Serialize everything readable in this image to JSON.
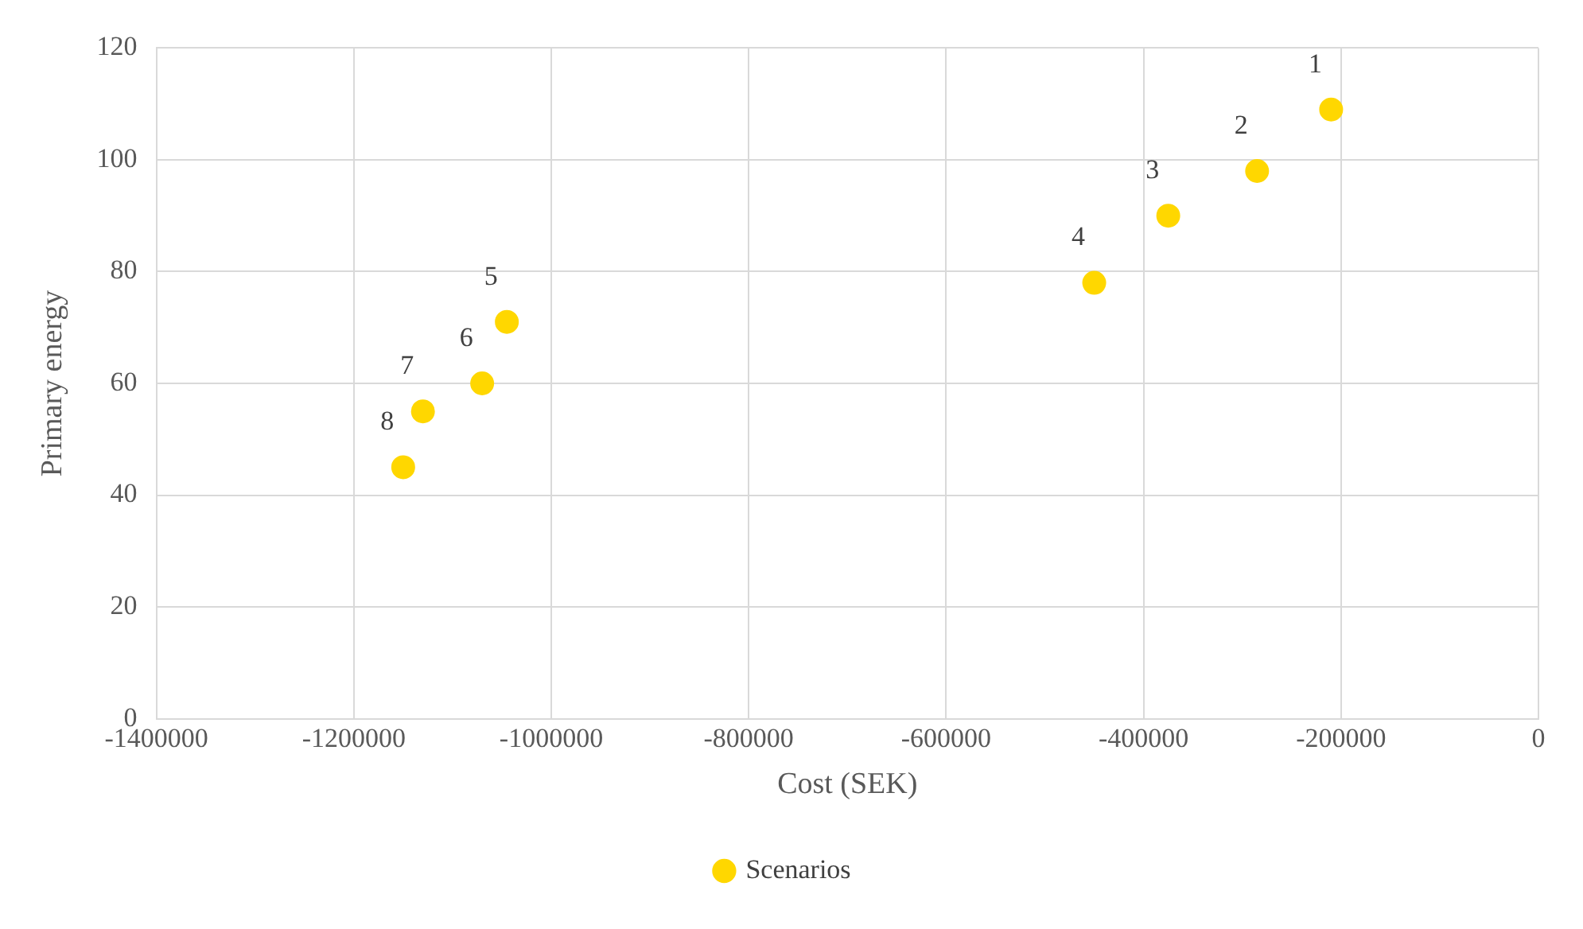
{
  "chart_data": {
    "type": "scatter",
    "xlabel": "Cost (SEK)",
    "ylabel": "Primary energy",
    "x": [
      -210000,
      -285000,
      -375000,
      -450000,
      -1045000,
      -1070000,
      -1130000,
      -1150000
    ],
    "series": [
      {
        "name": "Scenarios",
        "color": "#ffd700",
        "values": [
          109,
          98,
          90,
          78,
          71,
          60,
          55,
          45
        ]
      }
    ],
    "annotations": [
      {
        "text": "1",
        "x": -210000,
        "y": 109
      },
      {
        "text": "2",
        "x": -285000,
        "y": 98
      },
      {
        "text": "3",
        "x": -375000,
        "y": 90
      },
      {
        "text": "4",
        "x": -450000,
        "y": 78
      },
      {
        "text": "5",
        "x": -1045000,
        "y": 71
      },
      {
        "text": "6",
        "x": -1070000,
        "y": 60
      },
      {
        "text": "7",
        "x": -1130000,
        "y": 55
      },
      {
        "text": "8",
        "x": -1150000,
        "y": 45
      }
    ],
    "xlim": [
      -1400000,
      0
    ],
    "xticks": [
      -1400000,
      -1200000,
      -1000000,
      -800000,
      -600000,
      -400000,
      -200000,
      0
    ],
    "ylim": [
      0,
      120
    ],
    "yticks": [
      0,
      20,
      40,
      60,
      80,
      100,
      120
    ],
    "grid": true,
    "legend": "bottom",
    "marker": "circle"
  }
}
